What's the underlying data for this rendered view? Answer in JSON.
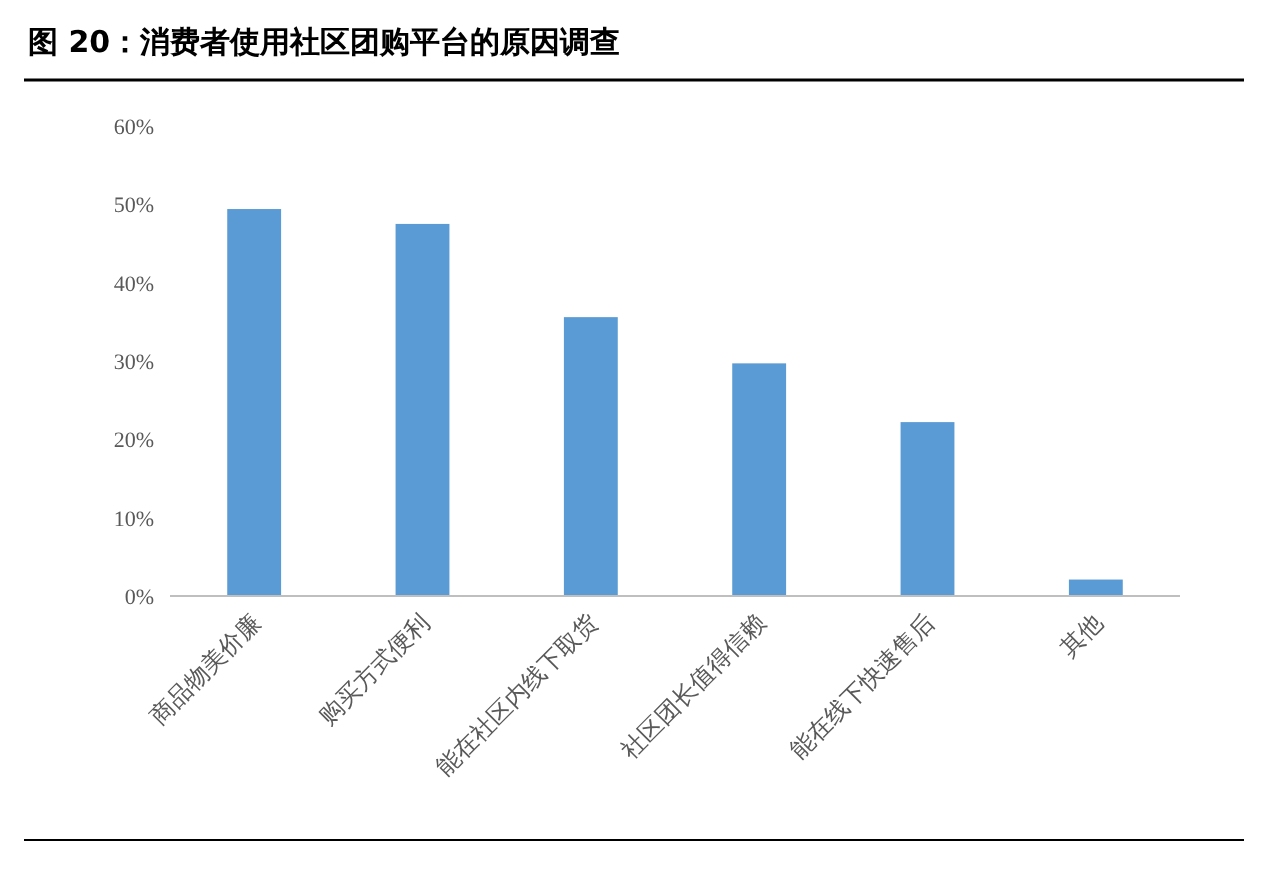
{
  "chart_data": {
    "type": "bar",
    "title": "图 20：消费者使用社区团购平台的原因调查",
    "categories": [
      "商品物美价廉",
      "购买方式便利",
      "能在社区内线下取货",
      "社区团长值得信赖",
      "能在线下快速售后",
      "其他"
    ],
    "values": [
      49.4,
      47.5,
      35.6,
      29.7,
      22.2,
      2.1
    ],
    "color": "#5b9bd5",
    "ylim": [
      0,
      60
    ],
    "yticks": [
      {
        "value": 0,
        "label": "0%"
      },
      {
        "value": 10,
        "label": "10%"
      },
      {
        "value": 20,
        "label": "20%"
      },
      {
        "value": 30,
        "label": "30%"
      },
      {
        "value": 40,
        "label": "40%"
      },
      {
        "value": 50,
        "label": "50%"
      },
      {
        "value": 60,
        "label": "60%"
      }
    ],
    "grid": false
  }
}
